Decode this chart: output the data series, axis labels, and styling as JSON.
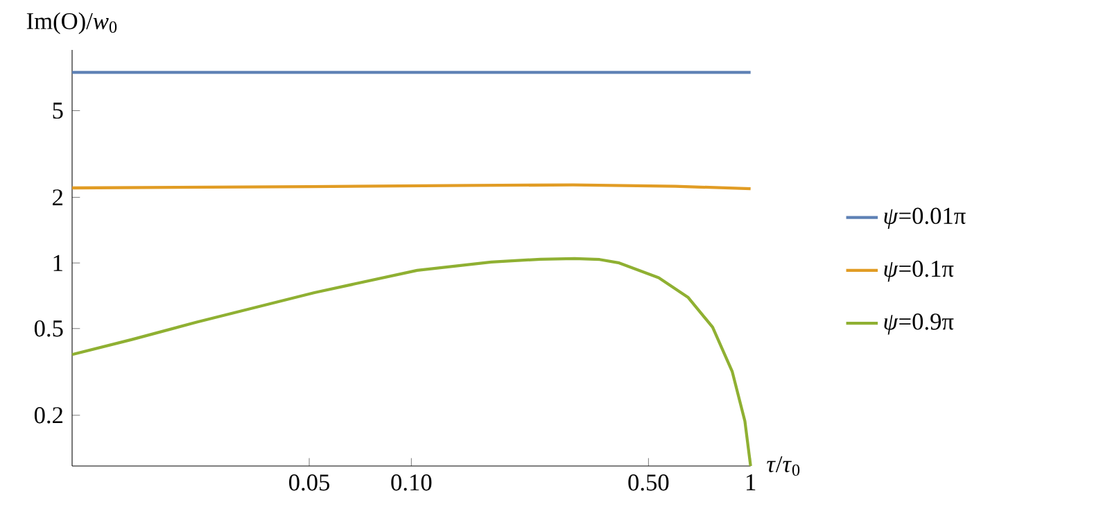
{
  "chart_data": {
    "type": "line",
    "xlabel": "*τ*/*τ*$_{0}$",
    "ylabel": "Im(O)/*w*$_{0}$",
    "log": "xy",
    "xlim": [
      0.01,
      1
    ],
    "ylim": [
      0.117,
      9.5
    ],
    "xticks": [
      0.05,
      {
        "value": 0.1,
        "label": "0.10"
      },
      {
        "value": 0.5,
        "label": "0.50"
      },
      1
    ],
    "yticks": [
      0.2,
      0.5,
      1,
      2,
      5
    ],
    "grid": false,
    "legend": "right",
    "line_style": "solid",
    "marker": "none",
    "series": [
      {
        "name": "*ψ*=0.01π",
        "color": "#5e81b5",
        "x": [
          0.01,
          0.1,
          1
        ],
        "values": [
          7.5,
          7.5,
          7.5
        ]
      },
      {
        "name": "*ψ*=0.1π",
        "color": "#e19c24",
        "x": [
          0.01,
          0.05,
          0.15,
          0.3,
          0.6,
          1
        ],
        "values": [
          2.21,
          2.24,
          2.27,
          2.28,
          2.25,
          2.19
        ]
      },
      {
        "name": "*ψ*=0.9π",
        "color": "#8fb032",
        "x": [
          0.01,
          0.015,
          0.0232,
          0.0518,
          0.104,
          0.172,
          0.24,
          0.303,
          0.359,
          0.41,
          0.536,
          0.655,
          0.773,
          0.883,
          0.962,
          1
        ],
        "values": [
          0.38,
          0.445,
          0.534,
          0.731,
          0.925,
          1.01,
          1.04,
          1.048,
          1.037,
          1.0,
          0.855,
          0.694,
          0.507,
          0.317,
          0.188,
          0.117
        ]
      }
    ]
  }
}
